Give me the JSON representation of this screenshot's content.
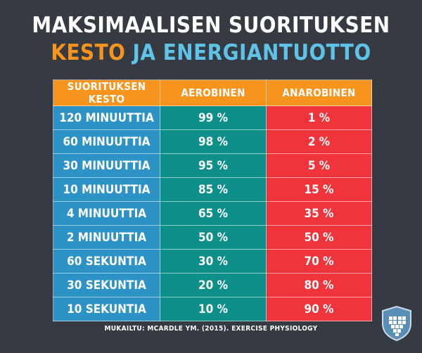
{
  "title": {
    "line1": "MAKSIMAALISEN SUORITUKSEN",
    "line2_accent": "KESTO",
    "line2_rest": "JA ENERGIANTUOTTO"
  },
  "table": {
    "headers": [
      "SUORITUKSEN KESTO",
      "AEROBINEN",
      "ANAROBINEN"
    ],
    "rows": [
      [
        "120 MINUUTTIA",
        "99 %",
        "1 %"
      ],
      [
        "60 MINUUTTIA",
        "98 %",
        "2 %"
      ],
      [
        "30 MINUUTTIA",
        "95 %",
        "5 %"
      ],
      [
        "10 MINUUTTIA",
        "85 %",
        "15 %"
      ],
      [
        "4 MINUUTTIA",
        "65 %",
        "35 %"
      ],
      [
        "2 MINUUTTIA",
        "50 %",
        "50 %"
      ],
      [
        "60 SEKUNTIA",
        "30 %",
        "70 %"
      ],
      [
        "30 SEKUNTIA",
        "20 %",
        "80 %"
      ],
      [
        "10 SEKUNTIA",
        "10 %",
        "90 %"
      ]
    ]
  },
  "source": "MUKAILTU: MCARDLE YM. (2015). EXERCISE PHYSIOLOGY",
  "colors": {
    "background": "#363a43",
    "header": "#f7941d",
    "duration": "#2d93c6",
    "aerobic": "#0e8f8a",
    "anaerobic": "#f0343b",
    "title_accent": "#f7941d",
    "title_blue": "#5fc3e8"
  },
  "icons": {
    "logo": "shield-heart-icon"
  }
}
